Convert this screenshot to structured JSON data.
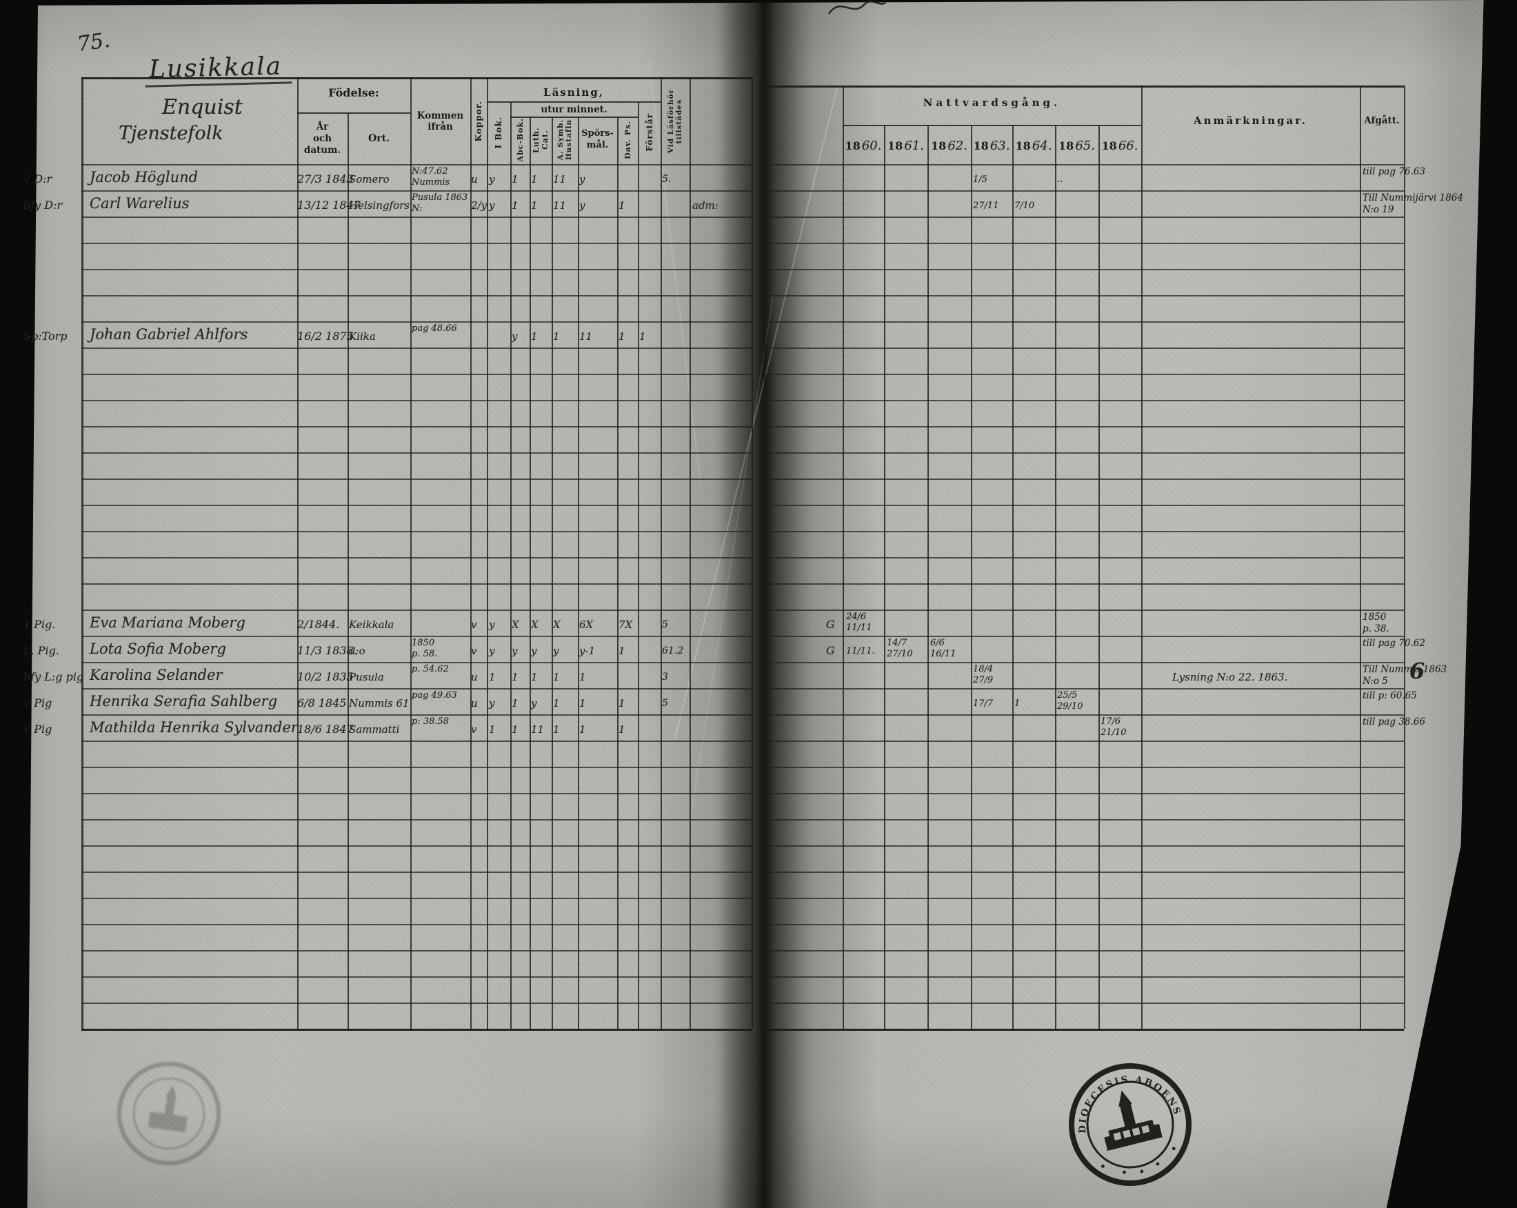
{
  "page": {
    "page_number": "75.",
    "title": "Lusikkala"
  },
  "left_table": {
    "name_header": {
      "line1": "Enquist",
      "line2": "Tjenstefolk"
    },
    "headers": {
      "fodelse": "Födelse:",
      "ar_och_datum": "År\noch datum.",
      "ort": "Ort.",
      "kommen_ifran": "Kommen ifrån",
      "koppor": "Koppor.",
      "lasning": "Läsning,",
      "utur_minnet": "utur minnet.",
      "i_bok": "I Bok.",
      "abc_bok": "Abc-Bok.",
      "luth_cat": "Luth. Cat.",
      "hustaflan": "Hustafln",
      "a_symb": "A. Symb.",
      "sporsmal": "Spörs-\nmål.",
      "dav_ps": "Dav. Ps.",
      "forstar": "Förstår",
      "vid_lasforhor": "Vid Läsförhör",
      "tillstades": "tillstädes"
    }
  },
  "right_table": {
    "title": "Nattvardsgång.",
    "year_prefix": "18",
    "years": [
      "60.",
      "61.",
      "62.",
      "63.",
      "64.",
      "65.",
      "66."
    ],
    "anmarkningar": "Anmärkningar.",
    "afgatt": "Afgått."
  },
  "entries": [
    {
      "row": 0,
      "margin": "√ D:r",
      "name": "Jacob Höglund",
      "born": "27/3 1843",
      "ort": "Somero",
      "kommen": "N:47.62\nNummis",
      "koppor": "u",
      "i_bok": "y",
      "abc": "1",
      "luth": "1",
      "hust": "11",
      "spors": "y",
      "vid": "5.",
      "y1863": "1/5",
      "y1865": "..",
      "afgatt": "till pag 76.63"
    },
    {
      "row": 1,
      "margin": "bfy D:r",
      "name": "Carl Warelius",
      "born": "13/12 1847",
      "ort": "Helsingfors",
      "kommen": "Pusula 1863\nN:",
      "koppor": "2/y",
      "i_bok": "y",
      "abc": "1",
      "luth": "1",
      "hust": "11",
      "spors": "y",
      "dav": "1",
      "extra": "adm:",
      "y1863": "27/11",
      "y1864": "7/10",
      "afgatt": "Till Nummijärvi 1864 N:o 19"
    },
    {
      "row": 6,
      "margin": "Sp:Torp",
      "name": "Johan Gabriel Ahlfors",
      "born": "16/2 1875",
      "ort": "Kiika",
      "kommen": "pag 48.66",
      "abc": "y",
      "luth": "1",
      "hust": "1",
      "spors": "11",
      "dav": "1",
      "forstar": "1"
    },
    {
      "row": 17,
      "margin": "1 Pig.",
      "name": "Eva Mariana Moberg",
      "born": "2/1844.",
      "ort": "Keikkala",
      "koppor": "v",
      "i_bok": "y",
      "abc": "X",
      "luth": "X",
      "hust": "X",
      "spors": "6X",
      "dav": "7X",
      "vid": "5",
      "g": "G",
      "y1860": "24/6 11/11",
      "afgatt": "1850\np. 38."
    },
    {
      "row": 18,
      "margin": "L. Pig.",
      "name": "Lota Sofia Moberg",
      "born": "11/3 1838.",
      "ort": "d:o",
      "kommen": "1850\np. 58.",
      "koppor": "v",
      "i_bok": "y",
      "abc": "y",
      "luth": "y",
      "hust": "y",
      "spors": "y-1",
      "dav": "1",
      "vid": "61.2",
      "g": "G",
      "y1860": "11/11.",
      "y1861": "14/7 27/10",
      "y1862": "6/6 16/11",
      "afgatt": "till pag 70.62"
    },
    {
      "row": 19,
      "margin": "bfy L:g pig",
      "name": "Karolina Selander",
      "born": "10/2 1835",
      "ort": "Pusula",
      "kommen": "p. 54.62",
      "koppor": "u",
      "i_bok": "1",
      "abc": "1",
      "luth": "1",
      "hust": "1",
      "spors": "1",
      "vid": "3",
      "y1863": "18/4 27/9",
      "anmarkning": "Lysning N:o 22. 1863.",
      "afgatt": "Till Nummis 1863 N:o 5",
      "big_mark": "6"
    },
    {
      "row": 20,
      "margin": "√ Pig",
      "name": "Henrika Serafia Sahlberg",
      "born": "6/8 1845",
      "ort": "Nummis 61",
      "kommen": "pag 49.63",
      "koppor": "u",
      "i_bok": "y",
      "abc": "1",
      "luth": "y",
      "hust": "1",
      "spors": "1",
      "dav": "1",
      "vid": "5",
      "y1863": "17/7",
      "y1864": "1",
      "y1865": "25/5 29/10",
      "afgatt": "till p: 60.65"
    },
    {
      "row": 21,
      "margin": "√ Pig",
      "name": "Mathilda Henrika Sylvander",
      "born": "18/6 1847",
      "ort": "Sammatti",
      "kommen": "p: 38.58",
      "koppor": "v",
      "i_bok": "1",
      "abc": "1",
      "luth": "11",
      "hust": "1",
      "spors": "1",
      "dav": "1",
      "y1866": "17/6 21/10",
      "afgatt": "till pag 38.66"
    }
  ],
  "stamps": {
    "right_rim_text": "DIOECESIS ABOENSIS"
  }
}
